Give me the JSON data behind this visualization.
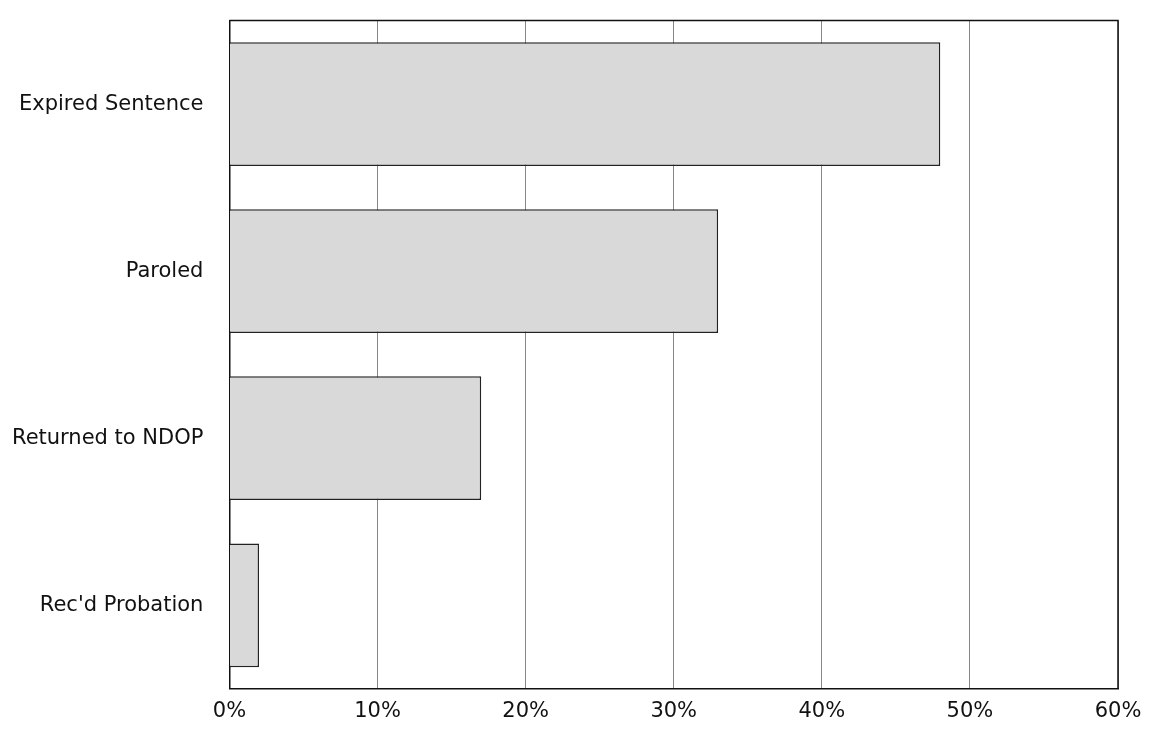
{
  "chart_data": {
    "type": "bar",
    "orientation": "horizontal",
    "categories": [
      "Expired Sentence",
      "Paroled",
      "Returned to NDOP",
      "Rec'd Probation"
    ],
    "values": [
      48,
      33,
      17,
      2
    ],
    "color": "#d9d9d9",
    "xlim": [
      0,
      60
    ],
    "xticks": [
      {
        "value": 0,
        "label": "0%"
      },
      {
        "value": 10,
        "label": "10%"
      },
      {
        "value": 20,
        "label": "20%"
      },
      {
        "value": 30,
        "label": "30%"
      },
      {
        "value": 40,
        "label": "40%"
      },
      {
        "value": 50,
        "label": "50%"
      },
      {
        "value": 60,
        "label": "60%"
      }
    ],
    "grid": "x",
    "legend": false
  }
}
